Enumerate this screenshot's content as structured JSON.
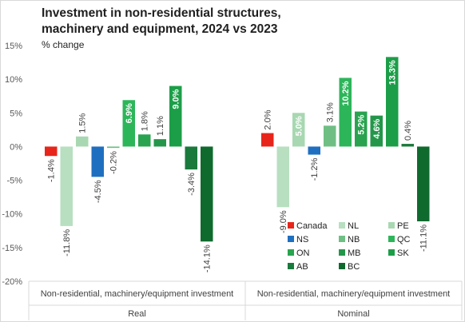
{
  "chart_data": {
    "type": "bar",
    "title": "Investment in non-residential structures, machinery and equipment, 2024 vs 2023",
    "subtitle": "% change",
    "ylim": [
      -20,
      15
    ],
    "yticks": [
      "-20%",
      "-15%",
      "-10%",
      "-5%",
      "0%",
      "5%",
      "10%",
      "15%"
    ],
    "ytick_values": [
      -20,
      -15,
      -10,
      -5,
      0,
      5,
      10,
      15
    ],
    "grid": false,
    "legend_position": "bottom-right",
    "groups": [
      {
        "category": "Non-residential, machinery/equipment investment",
        "group": "Real"
      },
      {
        "category": "Non-residential, machinery/equipment investment",
        "group": "Nominal"
      }
    ],
    "series": [
      {
        "name": "Canada",
        "color": "#e8251b",
        "values": [
          -1.4,
          2.0
        ],
        "labels": [
          "-1.4%",
          "2.0%"
        ]
      },
      {
        "name": "NL",
        "color": "#b7dfc0",
        "values": [
          -11.8,
          -9.0
        ],
        "labels": [
          "-11.8%",
          "-9.0%"
        ]
      },
      {
        "name": "PE",
        "color": "#a8d8b1",
        "values": [
          1.5,
          5.0
        ],
        "labels": [
          "1.5%",
          "5.0%"
        ]
      },
      {
        "name": "NS",
        "color": "#1f6fc0",
        "values": [
          -4.5,
          -1.2
        ],
        "labels": [
          "-4.5%",
          "-1.2%"
        ]
      },
      {
        "name": "NB",
        "color": "#6fbf84",
        "values": [
          -0.2,
          3.1
        ],
        "labels": [
          "-0.2%",
          "3.1%"
        ]
      },
      {
        "name": "QC",
        "color": "#2db55a",
        "values": [
          6.9,
          10.2
        ],
        "labels": [
          "6.9%",
          "10.2%"
        ]
      },
      {
        "name": "ON",
        "color": "#29a34f",
        "values": [
          1.8,
          5.2
        ],
        "labels": [
          "1.8%",
          "5.2%"
        ]
      },
      {
        "name": "MB",
        "color": "#23964a",
        "values": [
          1.1,
          4.6
        ],
        "labels": [
          "1.1%",
          "4.6%"
        ]
      },
      {
        "name": "SK",
        "color": "#1c9e48",
        "values": [
          9.0,
          13.3
        ],
        "labels": [
          "9.0%",
          "13.3%"
        ]
      },
      {
        "name": "AB",
        "color": "#1a7a3c",
        "values": [
          -3.4,
          0.4
        ],
        "labels": [
          "-3.4%",
          "0.4%"
        ]
      },
      {
        "name": "BC",
        "color": "#0f6a2e",
        "values": [
          -14.1,
          -11.1
        ],
        "labels": [
          "-14.1%",
          "-11.1%"
        ]
      }
    ]
  }
}
